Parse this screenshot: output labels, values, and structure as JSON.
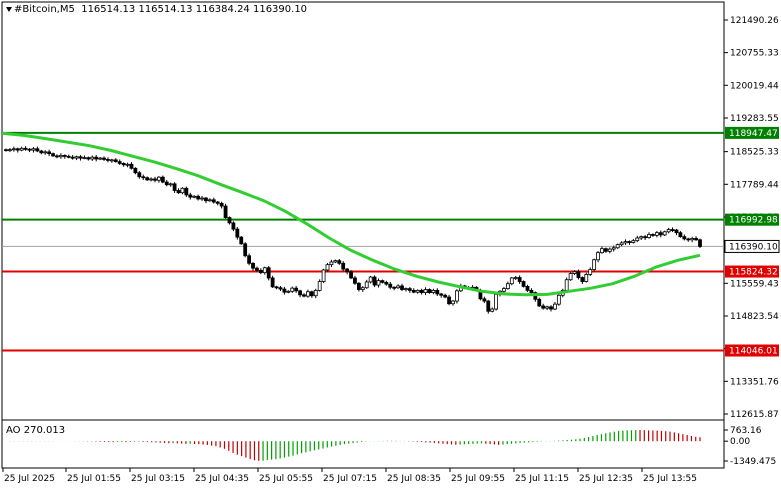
{
  "header": {
    "symbol": "#Bitcoin,M5",
    "ohlc": "116514.13 116514.13 116384.24 116390.10"
  },
  "colors": {
    "candle": "#000000",
    "ma": "#32CD32",
    "support": "#E00000",
    "resistance": "#008000",
    "ao_up": "#00A000",
    "ao_down": "#C00000"
  },
  "chart_data": [
    {
      "type": "candlestick",
      "title": "#Bitcoin,M5",
      "ylim": [
        112400,
        121700
      ],
      "yticks": [
        121490.26,
        120755.33,
        120019.44,
        119283.55,
        118525.33,
        117789.44,
        117053.55,
        116317.66,
        115559.43,
        114823.54,
        114087.65,
        113351.76,
        112615.87
      ],
      "xticks": [
        "25 Jul 2025",
        "25 Jul 01:55",
        "25 Jul 03:15",
        "25 Jul 04:35",
        "25 Jul 05:55",
        "25 Jul 07:15",
        "25 Jul 08:35",
        "25 Jul 09:55",
        "25 Jul 11:15",
        "25 Jul 12:35",
        "25 Jul 13:55"
      ],
      "close": [
        118550,
        118570,
        118590,
        118560,
        118600,
        118580,
        118560,
        118590,
        118540,
        118500,
        118520,
        118480,
        118430,
        118410,
        118440,
        118420,
        118400,
        118380,
        118410,
        118380,
        118390,
        118360,
        118400,
        118360,
        118380,
        118350,
        118330,
        118340,
        118300,
        118260,
        118230,
        118240,
        118150,
        118050,
        117960,
        117940,
        117890,
        117910,
        117880,
        117950,
        117840,
        117780,
        117800,
        117650,
        117600,
        117700,
        117550,
        117500,
        117520,
        117460,
        117480,
        117420,
        117440,
        117390,
        117360,
        117300,
        117040,
        116920,
        116780,
        116600,
        116450,
        116180,
        116010,
        115900,
        115850,
        115800,
        115910,
        115680,
        115480,
        115460,
        115430,
        115360,
        115380,
        115450,
        115390,
        115300,
        115270,
        115370,
        115280,
        115400,
        115600,
        115860,
        115980,
        116040,
        116070,
        116010,
        115880,
        115820,
        115680,
        115560,
        115420,
        115460,
        115590,
        115700,
        115520,
        115620,
        115580,
        115540,
        115470,
        115460,
        115500,
        115420,
        115440,
        115400,
        115360,
        115400,
        115350,
        115420,
        115350,
        115400,
        115320,
        115290,
        115250,
        115100,
        115160,
        115390,
        115500,
        115460,
        115450,
        115470,
        115400,
        115210,
        115160,
        114930,
        114980,
        115310,
        115380,
        115440,
        115550,
        115680,
        115690,
        115600,
        115490,
        115400,
        115350,
        115200,
        115050,
        115000,
        115030,
        114980,
        115090,
        115290,
        115400,
        115640,
        115780,
        115820,
        115690,
        115600,
        115760,
        115870,
        116090,
        116250,
        116340,
        116280,
        116330,
        116360,
        116430,
        116470,
        116500,
        116480,
        116520,
        116580,
        116610,
        116590,
        116660,
        116640,
        116700,
        116650,
        116720,
        116770,
        116760,
        116700,
        116610,
        116560,
        116540,
        116570,
        116540,
        116390
      ],
      "ma_series": [
        118940,
        118890,
        118820,
        118740,
        118660,
        118550,
        118420,
        118290,
        118140,
        117980,
        117790,
        117610,
        117420,
        117180,
        116890,
        116580,
        116300,
        116080,
        115880,
        115720,
        115590,
        115480,
        115380,
        115320,
        115300,
        115310,
        115380,
        115450,
        115550,
        115720,
        115930,
        116080,
        116190
      ],
      "horizontal_levels": [
        {
          "value": 118947.47,
          "label": "118947.47",
          "role": "resistance"
        },
        {
          "value": 116992.98,
          "label": "116992.98",
          "role": "resistance"
        },
        {
          "value": 115824.32,
          "label": "115824.32",
          "role": "support"
        },
        {
          "value": 114046.01,
          "label": "114046.01",
          "role": "support"
        }
      ],
      "current_price": {
        "value": 116390.1,
        "label": "116390.10"
      }
    },
    {
      "type": "bar",
      "title": "AO 270.013",
      "ylim": [
        -1500,
        900
      ],
      "yticks": [
        763.16,
        0.0,
        -1349.475
      ],
      "ytick_labels": [
        "763.16",
        "0.00",
        "-1349.475"
      ],
      "values": [
        5,
        8,
        10,
        12,
        14,
        12,
        10,
        8,
        9,
        10,
        8,
        6,
        4,
        3,
        6,
        2,
        -5,
        -8,
        -12,
        -15,
        -20,
        -30,
        -40,
        -55,
        -60,
        -65,
        -58,
        -55,
        -60,
        -50,
        -45,
        -40,
        -50,
        -60,
        -75,
        -85,
        -100,
        -120,
        -140,
        -130,
        -150,
        -160,
        -180,
        -170,
        -190,
        -200,
        -230,
        -260,
        -300,
        -340,
        -420,
        -520,
        -650,
        -800,
        -920,
        -1020,
        -1120,
        -1220,
        -1300,
        -1340,
        -1330,
        -1280,
        -1250,
        -1220,
        -1180,
        -1120,
        -1050,
        -980,
        -900,
        -820,
        -760,
        -690,
        -620,
        -560,
        -500,
        -430,
        -370,
        -310,
        -250,
        -200,
        -160,
        -120,
        -80,
        -50,
        -20,
        -10,
        5,
        15,
        20,
        30,
        25,
        20,
        10,
        -10,
        -20,
        -30,
        -45,
        -60,
        -80,
        -100,
        -120,
        -150,
        -170,
        -200,
        -220,
        -240,
        -230,
        -210,
        -200,
        -180,
        -160,
        -150,
        -170,
        -190,
        -220,
        -250,
        -230,
        -200,
        -180,
        -150,
        -120,
        -100,
        -80,
        -60,
        -40,
        -20,
        -10,
        10,
        20,
        40,
        60,
        80,
        100,
        130,
        170,
        220,
        280,
        350,
        420,
        480,
        540,
        600,
        650,
        700,
        720,
        740,
        750,
        763,
        760,
        750,
        740,
        730,
        720,
        700,
        680,
        650,
        600,
        540,
        480,
        420,
        360,
        300,
        270
      ]
    }
  ]
}
